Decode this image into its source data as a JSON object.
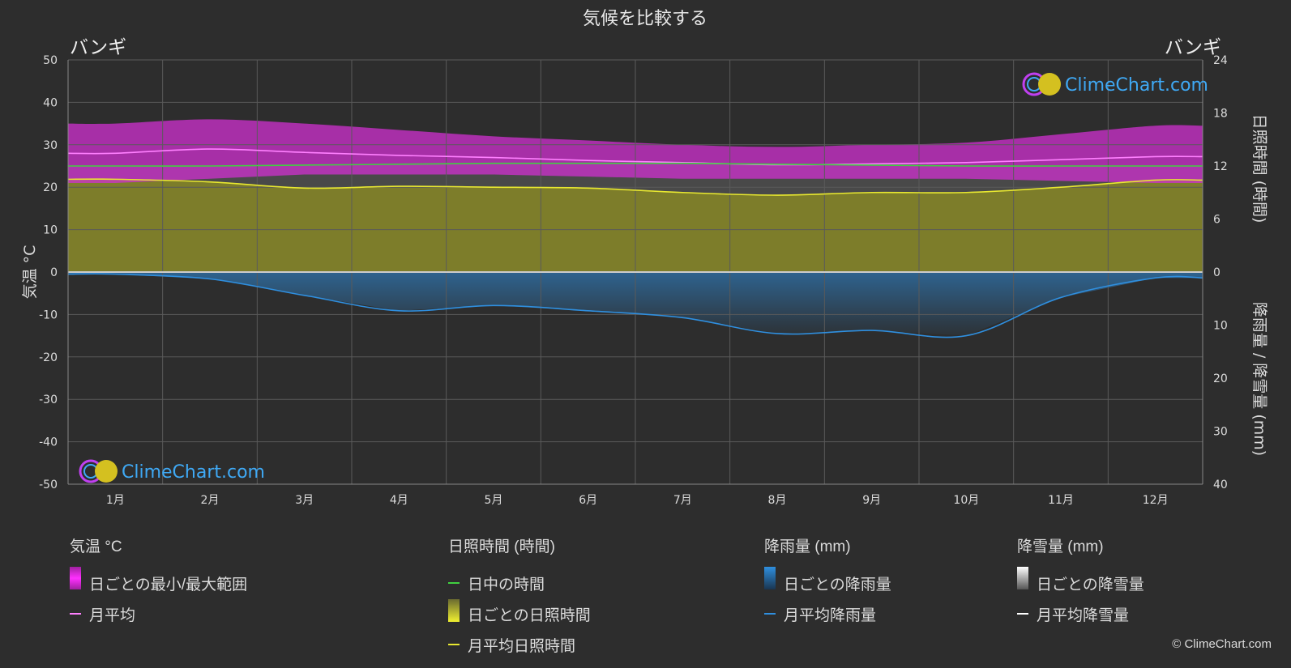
{
  "title": "気候を比較する",
  "location_left": "バンギ",
  "location_right": "バンギ",
  "brand": "ClimeChart.com",
  "copyright": "© ClimeChart.com",
  "chart_data": {
    "type": "area",
    "months": [
      "1月",
      "2月",
      "3月",
      "4月",
      "5月",
      "6月",
      "7月",
      "8月",
      "9月",
      "10月",
      "11月",
      "12月"
    ],
    "axes": {
      "left": {
        "label": "気温 °C",
        "ylim": [
          -50,
          50
        ],
        "ticks": [
          50,
          40,
          30,
          20,
          10,
          0,
          -10,
          -20,
          -30,
          -40,
          -50
        ]
      },
      "right_top": {
        "label": "日照時間 (時間)",
        "ylim": [
          0,
          24
        ],
        "ticks": [
          24,
          18,
          12,
          6,
          0
        ]
      },
      "right_bottom": {
        "label": "降雨量 / 降雪量 (mm)",
        "ylim": [
          0,
          40
        ],
        "ticks": [
          0,
          10,
          20,
          30,
          40
        ]
      }
    },
    "series": [
      {
        "name": "月平均",
        "unit": "°C",
        "color": "#ff80ff",
        "values": [
          28,
          29,
          28.2,
          27.5,
          27,
          26.3,
          25.8,
          25.3,
          25.5,
          25.8,
          26.5,
          27.2
        ]
      },
      {
        "name": "日ごとの最小/最大範囲",
        "unit": "°C",
        "color": "#e040e0",
        "max": [
          35,
          36,
          35,
          33.5,
          32,
          31,
          30,
          29.5,
          30,
          30.5,
          32.5,
          34.5
        ],
        "min": [
          21,
          22,
          23,
          23,
          23,
          22.5,
          22,
          22,
          22,
          22,
          21.5,
          21
        ]
      },
      {
        "name": "日中の時間",
        "unit": "時間",
        "color": "#40d040",
        "values": [
          12,
          12,
          12.1,
          12.2,
          12.3,
          12.3,
          12.3,
          12.2,
          12.1,
          12,
          12,
          12
        ]
      },
      {
        "name": "月平均日照時間",
        "unit": "時間",
        "color": "#e8e830",
        "values": [
          10.5,
          10.2,
          9.5,
          9.7,
          9.6,
          9.5,
          9,
          8.7,
          9,
          9,
          9.6,
          10.4
        ]
      },
      {
        "name": "月平均降雨量",
        "unit": "mm",
        "color": "#2f8fdf",
        "values": [
          0.4,
          1.3,
          4.4,
          7.3,
          6.3,
          7.3,
          8.6,
          11.6,
          11,
          12,
          4.8,
          1.1
        ]
      },
      {
        "name": "月平均降雪量",
        "unit": "mm",
        "color": "#ffffff",
        "values": [
          0,
          0,
          0,
          0,
          0,
          0,
          0,
          0,
          0,
          0,
          0,
          0
        ]
      }
    ]
  },
  "legend": {
    "temperature": {
      "title": "気温 °C",
      "range": "日ごとの最小/最大範囲",
      "avg": "月平均"
    },
    "sunshine": {
      "title": "日照時間 (時間)",
      "daylight": "日中の時間",
      "daily": "日ごとの日照時間",
      "avg": "月平均日照時間"
    },
    "rain": {
      "title": "降雨量 (mm)",
      "daily": "日ごとの降雨量",
      "avg": "月平均降雨量"
    },
    "snow": {
      "title": "降雪量 (mm)",
      "daily": "日ごとの降雪量",
      "avg": "月平均降雪量"
    }
  },
  "colors": {
    "background": "#2d2d2d",
    "temp_range": "#e040e0",
    "temp_avg": "#ff80ff",
    "daylight": "#40d040",
    "sunshine": "#e8e830",
    "rain": "#2f8fdf",
    "snow": "#ffffff",
    "brand": "#3fa9f5"
  }
}
